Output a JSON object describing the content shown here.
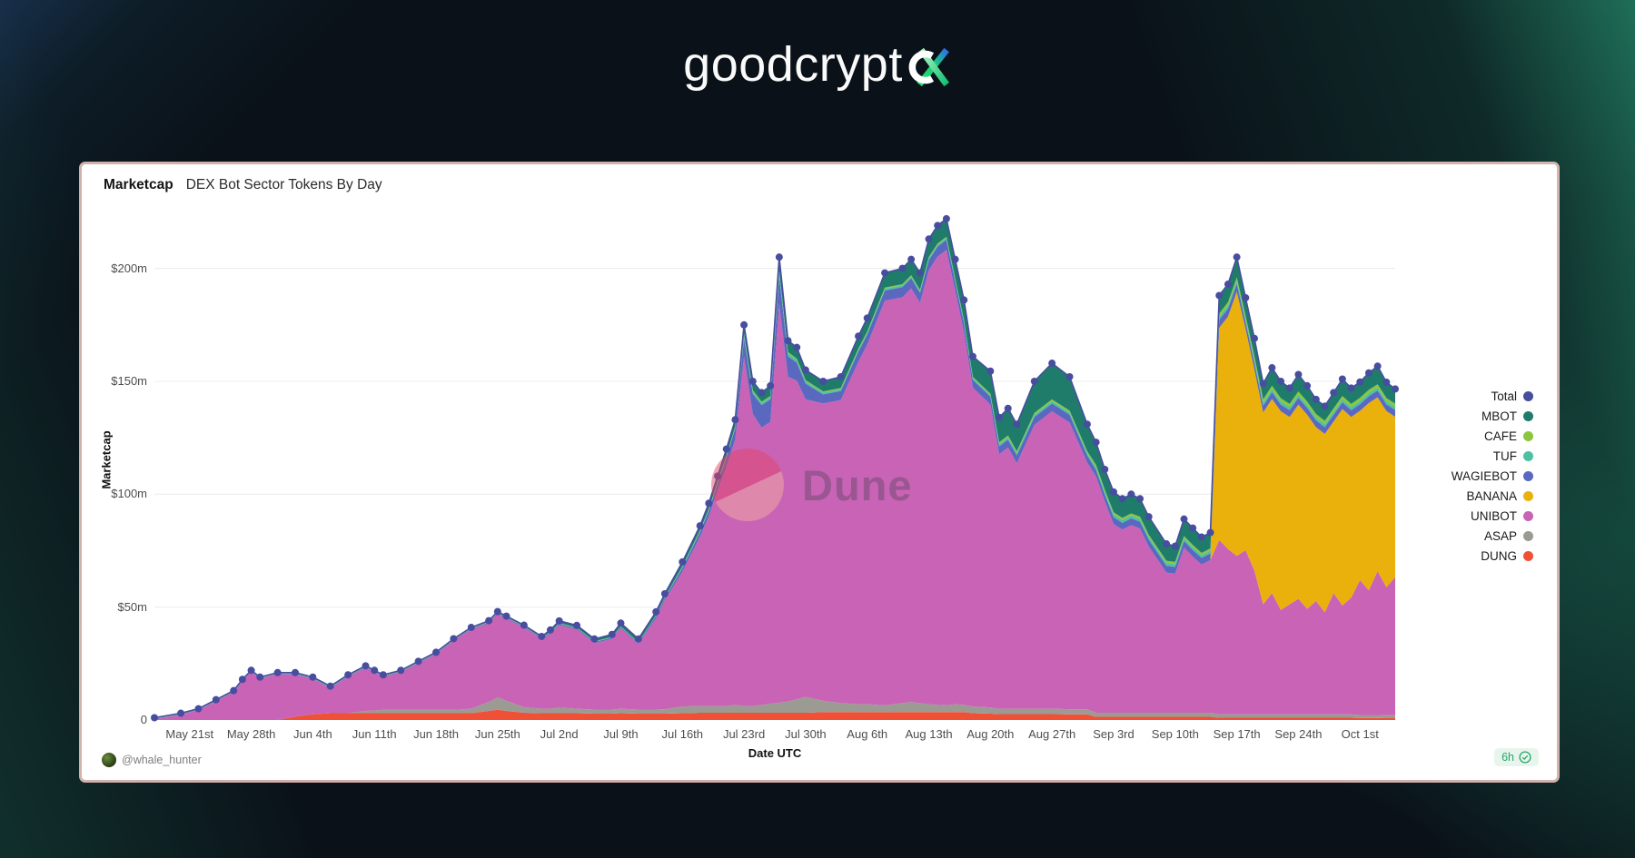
{
  "logo": {
    "text": "goodcrypt"
  },
  "card": {
    "title": "Marketcap",
    "subtitle": "DEX Bot Sector Tokens By Day",
    "attribution": "@whale_hunter",
    "badge": {
      "label": "6h"
    },
    "watermark": "Dune"
  },
  "chart_data": {
    "type": "area",
    "stacked": true,
    "title": "Marketcap DEX Bot Sector Tokens By Day",
    "xlabel": "Date UTC",
    "ylabel": "Marketcap",
    "x_unit": "day index, day 0 = May 17",
    "ylim": [
      0,
      230
    ],
    "grid": true,
    "legend_position": "right",
    "y_ticks": [
      {
        "label": "$200m",
        "value": 200
      },
      {
        "label": "$150m",
        "value": 150
      },
      {
        "label": "$100m",
        "value": 100
      },
      {
        "label": "$50m",
        "value": 50
      },
      {
        "label": "0",
        "value": 0
      }
    ],
    "x_ticks": [
      {
        "label": "May 21st",
        "day": 4
      },
      {
        "label": "May 28th",
        "day": 11
      },
      {
        "label": "Jun 4th",
        "day": 18
      },
      {
        "label": "Jun 11th",
        "day": 25
      },
      {
        "label": "Jun 18th",
        "day": 32
      },
      {
        "label": "Jun 25th",
        "day": 39
      },
      {
        "label": "Jul 2nd",
        "day": 46
      },
      {
        "label": "Jul 9th",
        "day": 53
      },
      {
        "label": "Jul 16th",
        "day": 60
      },
      {
        "label": "Jul 23rd",
        "day": 67
      },
      {
        "label": "Jul 30th",
        "day": 74
      },
      {
        "label": "Aug 6th",
        "day": 81
      },
      {
        "label": "Aug 13th",
        "day": 88
      },
      {
        "label": "Aug 20th",
        "day": 95
      },
      {
        "label": "Aug 27th",
        "day": 102
      },
      {
        "label": "Sep 3rd",
        "day": 109
      },
      {
        "label": "Sep 10th",
        "day": 116
      },
      {
        "label": "Sep 17th",
        "day": 123
      },
      {
        "label": "Sep 24th",
        "day": 130
      },
      {
        "label": "Oct 1st",
        "day": 137
      }
    ],
    "days": [
      0,
      3,
      5,
      7,
      9,
      10,
      11,
      12,
      14,
      16,
      18,
      20,
      22,
      24,
      25,
      26,
      28,
      30,
      32,
      34,
      36,
      38,
      39,
      40,
      42,
      44,
      45,
      46,
      48,
      50,
      52,
      53,
      55,
      57,
      58,
      60,
      62,
      63,
      64,
      65,
      66,
      67,
      68,
      69,
      70,
      71,
      72,
      73,
      74,
      76,
      78,
      80,
      81,
      83,
      85,
      86,
      87,
      88,
      89,
      90,
      91,
      92,
      93,
      95,
      96,
      97,
      98,
      100,
      102,
      104,
      106,
      107,
      108,
      109,
      110,
      111,
      112,
      113,
      115,
      116,
      117,
      118,
      119,
      120,
      121,
      122,
      123,
      124,
      125,
      126,
      127,
      128,
      129,
      130,
      131,
      132,
      133,
      134,
      135,
      136,
      137,
      138,
      139,
      140,
      141
    ],
    "stack_order": [
      "DUNG",
      "ASAP",
      "UNIBOT",
      "BANANA",
      "WAGIEBOT",
      "TUF",
      "CAFE",
      "MBOT"
    ],
    "series": {
      "DUNG": {
        "color": "#f05136",
        "values": [
          0,
          0,
          0,
          0,
          0,
          0,
          0,
          0,
          0,
          1.5,
          2.5,
          3,
          3,
          3,
          3,
          3,
          3,
          3,
          3,
          3,
          3,
          4,
          4.5,
          4,
          3.2,
          3,
          3,
          3,
          3,
          2.8,
          2.8,
          3,
          2.8,
          2.8,
          2.8,
          3,
          3.2,
          3.2,
          3.2,
          3.2,
          3.2,
          3.2,
          3.2,
          3.2,
          3.2,
          3.2,
          3.2,
          3.2,
          3.2,
          3.5,
          3.5,
          3.5,
          3.5,
          3.5,
          3.5,
          3.5,
          3.5,
          3.5,
          3.5,
          3.5,
          3.5,
          3.5,
          3,
          2.8,
          2.6,
          2.6,
          2.6,
          2.6,
          2.6,
          2.5,
          2.5,
          1.4,
          1.4,
          1.4,
          1.4,
          1.4,
          1.4,
          1.4,
          1.4,
          1.4,
          1.4,
          1.4,
          1.4,
          1.4,
          1,
          1,
          1,
          1,
          1,
          1,
          1,
          1,
          1,
          1,
          1,
          1,
          1,
          1,
          1,
          1,
          0.9,
          0.9,
          0.9,
          0.8,
          0.8
        ]
      },
      "ASAP": {
        "color": "#9b9b94",
        "values": [
          0,
          0,
          0,
          0,
          0,
          0,
          0,
          0,
          0,
          0,
          0,
          0,
          0,
          1,
          1.2,
          1.5,
          1.5,
          1.5,
          1.5,
          1.5,
          2,
          4,
          5.5,
          4.5,
          2.5,
          2,
          2,
          2.5,
          2,
          1.8,
          1.8,
          2,
          1.8,
          1.8,
          2,
          3,
          3,
          3,
          3,
          3,
          3.5,
          3,
          3,
          3.5,
          4,
          4.5,
          5,
          6,
          7,
          5,
          4,
          3.5,
          3.5,
          3,
          4,
          4.5,
          4,
          3.5,
          3.2,
          3,
          3.5,
          3.2,
          3,
          2.8,
          2.4,
          2.4,
          2.4,
          2.4,
          2.4,
          2.3,
          2.2,
          1.8,
          1.8,
          1.8,
          1.8,
          1.8,
          1.8,
          1.8,
          1.8,
          1.8,
          1.8,
          1.8,
          1.8,
          1.8,
          1.5,
          1.5,
          1.5,
          1.5,
          1.5,
          1.5,
          1.5,
          1.5,
          1.5,
          1.5,
          1.5,
          1.5,
          1.5,
          1.5,
          1.5,
          1.5,
          1.3,
          1.3,
          1.3,
          1.3,
          1.3
        ]
      },
      "UNIBOT": {
        "color": "#c963b5",
        "values": [
          0.3,
          2.3,
          4.3,
          8.3,
          12.3,
          17.3,
          21.3,
          18.3,
          20.3,
          18.6,
          15.6,
          11.1,
          16.1,
          19.1,
          16.9,
          14.6,
          16.6,
          20.6,
          24.6,
          30.6,
          35.1,
          34.9,
          36.9,
          36.4,
          35.2,
          30.9,
          33.1,
          36.6,
          35.1,
          29.5,
          31.3,
          35.6,
          29,
          40.5,
          48.3,
          59.7,
          75,
          84,
          95.5,
          106,
          117.5,
          154.8,
          129.3,
          122.8,
          124.8,
          176.8,
          143.8,
          141.1,
          131.8,
          131.7,
          134.2,
          151.7,
          159.2,
          179.2,
          179.7,
          183.2,
          177.2,
          192.2,
          198.5,
          201.7,
          183.2,
          165,
          141.2,
          134.1,
          112.7,
          115.7,
          108.7,
          125.7,
          131.7,
          126.9,
          109.3,
          104.6,
          93.6,
          83.6,
          81.1,
          83.1,
          81.6,
          73.6,
          62.1,
          61.6,
          73.1,
          69.1,
          65.6,
          67.6,
          77.2,
          73.2,
          70.2,
          72.7,
          63.7,
          48.7,
          53.7,
          46.2,
          48.7,
          51.2,
          46.7,
          50.2,
          45.2,
          53.7,
          48.2,
          51.7,
          59.7,
          55.2,
          63.7,
          56.7,
          61.2
        ]
      },
      "BANANA": {
        "color": "#eab10d",
        "values": [
          0,
          0,
          0,
          0,
          0,
          0,
          0,
          0,
          0,
          0,
          0,
          0,
          0,
          0,
          0,
          0,
          0,
          0,
          0,
          0,
          0,
          0,
          0,
          0,
          0,
          0,
          0,
          0,
          0,
          0,
          0,
          0,
          0,
          0,
          0,
          0,
          0,
          0,
          0,
          0,
          0,
          0,
          0,
          0,
          0,
          0,
          0,
          0,
          0,
          0,
          0,
          0,
          0,
          0,
          0,
          0,
          0,
          0,
          0,
          0,
          0,
          0,
          0,
          0,
          0,
          0,
          0,
          0,
          0,
          0,
          0,
          0,
          0,
          0,
          0,
          0,
          0,
          0,
          0,
          0,
          0,
          0,
          0,
          0,
          94,
          103,
          117,
          98,
          89,
          85,
          86,
          88,
          83,
          86,
          86,
          77,
          79,
          76,
          87,
          80,
          75,
          83,
          77,
          78,
          71
        ]
      },
      "WAGIEBOT": {
        "color": "#5a68c0",
        "values": [
          0.2,
          0.2,
          0.2,
          0.2,
          0.2,
          0.2,
          0.2,
          0.2,
          0.2,
          0.3,
          0.3,
          0.3,
          0.3,
          0.3,
          0.3,
          0.3,
          0.3,
          0.3,
          0.3,
          0.3,
          0.3,
          0.4,
          0.4,
          0.4,
          0.4,
          0.4,
          0.5,
          0.5,
          0.5,
          0.5,
          0.5,
          0.5,
          0.5,
          1,
          1,
          1.5,
          2,
          2.5,
          3,
          4,
          5,
          8,
          9,
          10,
          10,
          12,
          9,
          8,
          7,
          4,
          4,
          4.5,
          4.5,
          4.5,
          4.5,
          4.5,
          4.5,
          4.5,
          4.5,
          4.5,
          4,
          4,
          3.5,
          3.5,
          3.5,
          3.5,
          3.5,
          3.5,
          3.5,
          3.5,
          3.2,
          3,
          3,
          3,
          3,
          3,
          3,
          3,
          3,
          3,
          3,
          3,
          3,
          3,
          3.5,
          3.5,
          3.5,
          3,
          3,
          3,
          3,
          3,
          3,
          3,
          3,
          3,
          3,
          3,
          3,
          3,
          3,
          3,
          3,
          3,
          3
        ]
      },
      "TUF": {
        "color": "#4cbfa4",
        "values": [
          0.1,
          0.1,
          0.1,
          0.1,
          0.1,
          0.1,
          0.1,
          0.1,
          0.1,
          0.1,
          0.1,
          0.1,
          0.1,
          0.1,
          0.1,
          0.1,
          0.1,
          0.1,
          0.1,
          0.1,
          0.1,
          0.1,
          0.1,
          0.1,
          0.1,
          0.1,
          0.2,
          0.2,
          0.2,
          0.2,
          0.2,
          0.2,
          0.2,
          0.2,
          0.2,
          0.5,
          0.5,
          0.5,
          0.5,
          0.5,
          0.5,
          1.5,
          1,
          1,
          1,
          2,
          1.5,
          1.2,
          1,
          0.8,
          0.8,
          0.8,
          0.8,
          0.8,
          0.8,
          0.8,
          0.8,
          0.8,
          0.8,
          0.8,
          0.8,
          0.8,
          0.8,
          0.8,
          1,
          1,
          1,
          1,
          1,
          1,
          1,
          1.2,
          1.2,
          1.2,
          1.2,
          1.2,
          1.2,
          1.2,
          1.2,
          1.2,
          1.2,
          1.2,
          1.2,
          1.2,
          1.3,
          1.3,
          1.3,
          1.3,
          1.3,
          1.3,
          1.3,
          1.3,
          1.3,
          1.3,
          1.3,
          1.3,
          1.3,
          1.3,
          1.3,
          1.3,
          1.3,
          1.3,
          1.3,
          1.3,
          1.3
        ]
      },
      "CAFE": {
        "color": "#8cc63f",
        "values": [
          0.1,
          0.1,
          0.1,
          0.1,
          0.1,
          0.1,
          0.1,
          0.1,
          0.1,
          0.1,
          0.1,
          0.1,
          0.1,
          0.1,
          0.1,
          0.1,
          0.1,
          0.1,
          0.1,
          0.1,
          0.1,
          0.1,
          0.1,
          0.1,
          0.1,
          0.1,
          0.1,
          0.1,
          0.1,
          0.1,
          0.1,
          0.1,
          0.1,
          0.1,
          0.1,
          0.3,
          0.3,
          0.3,
          0.3,
          0.3,
          0.3,
          0.5,
          0.5,
          0.5,
          0.5,
          0.5,
          0.5,
          0.5,
          0.5,
          0.5,
          0.5,
          0.5,
          0.5,
          0.5,
          0.5,
          0.5,
          0.5,
          0.5,
          0.5,
          0.5,
          0.5,
          0.5,
          0.5,
          0.5,
          0.8,
          0.8,
          0.8,
          0.8,
          0.8,
          0.8,
          0.8,
          1,
          1,
          1,
          1,
          1,
          1,
          1,
          1,
          1,
          1,
          1,
          1,
          1,
          1.5,
          1.5,
          1.5,
          1.5,
          1.5,
          1.5,
          1.5,
          1.5,
          1.5,
          1.5,
          1.5,
          1.5,
          1.5,
          1.5,
          1.5,
          1.5,
          1.5,
          1.5,
          1.5,
          1.5,
          1.5
        ]
      },
      "MBOT": {
        "color": "#1f7c6b",
        "values": [
          0.3,
          0.3,
          0.3,
          0.3,
          0.3,
          0.3,
          0.3,
          0.3,
          0.3,
          0.4,
          0.4,
          0.4,
          0.4,
          0.4,
          0.4,
          0.4,
          0.4,
          0.4,
          0.4,
          0.4,
          0.4,
          0.5,
          0.5,
          0.5,
          0.5,
          0.5,
          1,
          1,
          1,
          1,
          1.2,
          1.5,
          1.5,
          1.5,
          1.5,
          2,
          2,
          2.5,
          2.5,
          3,
          3,
          4,
          4,
          4,
          4.5,
          6,
          5,
          5,
          4.5,
          4.5,
          5,
          5.5,
          6,
          6.5,
          7,
          7,
          7.5,
          8,
          8,
          8,
          8.5,
          9,
          9,
          10,
          11,
          12,
          12,
          14,
          16,
          15,
          12,
          10,
          9,
          9,
          8.5,
          8.5,
          8,
          8,
          7.5,
          7,
          7.5,
          7.5,
          7,
          7,
          8,
          8,
          9,
          8,
          8,
          7,
          8,
          7.5,
          7,
          7.5,
          7,
          6.5,
          6.5,
          7,
          7.5,
          7,
          7,
          7.5,
          8,
          7,
          6.5
        ]
      }
    },
    "total": {
      "label": "Total",
      "color": "#474d9f"
    },
    "legend": [
      {
        "label": "Total",
        "color": "#474d9f"
      },
      {
        "label": "MBOT",
        "color": "#1f7c6b"
      },
      {
        "label": "CAFE",
        "color": "#8cc63f"
      },
      {
        "label": "TUF",
        "color": "#4cbfa4"
      },
      {
        "label": "WAGIEBOT",
        "color": "#5a68c0"
      },
      {
        "label": "BANANA",
        "color": "#eab10d"
      },
      {
        "label": "UNIBOT",
        "color": "#c963b5"
      },
      {
        "label": "ASAP",
        "color": "#9b9b94"
      },
      {
        "label": "DUNG",
        "color": "#f05136"
      }
    ]
  }
}
